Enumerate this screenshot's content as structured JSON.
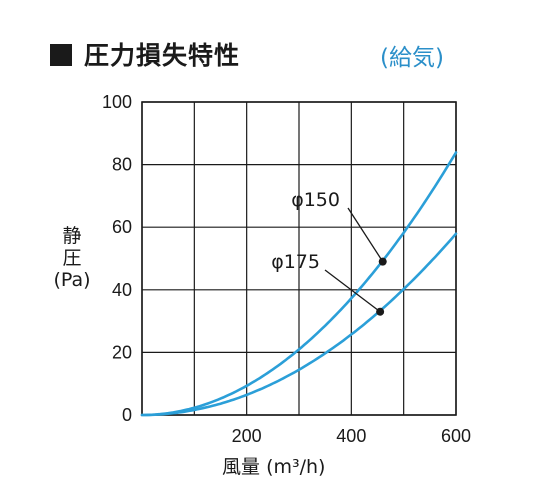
{
  "header": {
    "title": "圧力損失特性",
    "subtitle": "給気",
    "subtitle_open": "(",
    "subtitle_close": ")"
  },
  "colors": {
    "curve": "#2b9fd8",
    "grid": "#1a1a1a",
    "subtitle": "#2b8fc9"
  },
  "chart_data": {
    "type": "line",
    "title": "圧力損失特性",
    "subtitle": "(給気)",
    "xlabel": "風量",
    "xlabel_unit": "(m³/h)",
    "ylabel_line1": "静",
    "ylabel_line2": "圧",
    "ylabel_unit": "(Pa)",
    "xlim": [
      0,
      600
    ],
    "ylim": [
      0,
      100
    ],
    "xticks": [
      200,
      400,
      600
    ],
    "yticks": [
      0,
      20,
      40,
      60,
      80,
      100
    ],
    "grid": true,
    "series": [
      {
        "name": "φ150",
        "x": [
          0,
          100,
          200,
          300,
          400,
          460,
          500,
          600
        ],
        "y": [
          0,
          2.3,
          9.3,
          21,
          37.3,
          49,
          58.3,
          84
        ]
      },
      {
        "name": "φ175",
        "x": [
          0,
          100,
          200,
          300,
          400,
          455,
          500,
          600
        ],
        "y": [
          0,
          1.6,
          6.4,
          14.5,
          25.8,
          33,
          40.3,
          58
        ]
      }
    ],
    "markers": [
      {
        "series": "φ150",
        "x": 460,
        "y": 49
      },
      {
        "series": "φ175",
        "x": 455,
        "y": 33
      }
    ]
  }
}
